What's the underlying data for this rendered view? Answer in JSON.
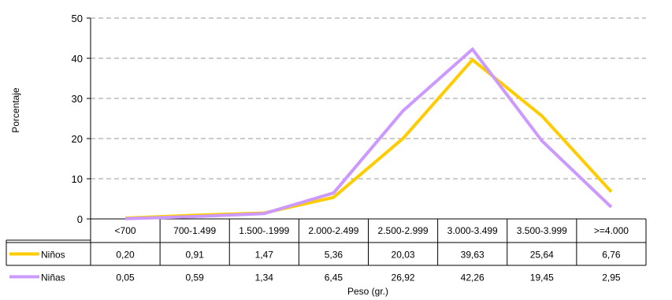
{
  "chart_data": {
    "type": "line",
    "xlabel": "Peso (gr.)",
    "ylabel": "Porcentaje",
    "ylim": [
      0,
      50
    ],
    "yticks": [
      "0",
      "10",
      "20",
      "30",
      "40",
      "50"
    ],
    "grid": true,
    "categories": [
      "<700",
      "700-1.499",
      "1.500-.1999",
      "2.000-2.499",
      "2.500-2.999",
      "3.000-3.499",
      "3.500-3.999",
      ">=4.000"
    ],
    "series": [
      {
        "name": "Niños",
        "color": "#ffcc00",
        "values": [
          0.2,
          0.91,
          1.47,
          5.36,
          20.03,
          39.63,
          25.64,
          6.76
        ],
        "labels": [
          "0,20",
          "0,91",
          "1,47",
          "5,36",
          "20,03",
          "39,63",
          "25,64",
          "6,76"
        ]
      },
      {
        "name": "Niñas",
        "color": "#cc99ff",
        "values": [
          0.05,
          0.59,
          1.34,
          6.45,
          26.92,
          42.26,
          19.45,
          2.95
        ],
        "labels": [
          "0,05",
          "0,59",
          "1,34",
          "6,45",
          "26,92",
          "42,26",
          "19,45",
          "2,95"
        ]
      }
    ]
  }
}
